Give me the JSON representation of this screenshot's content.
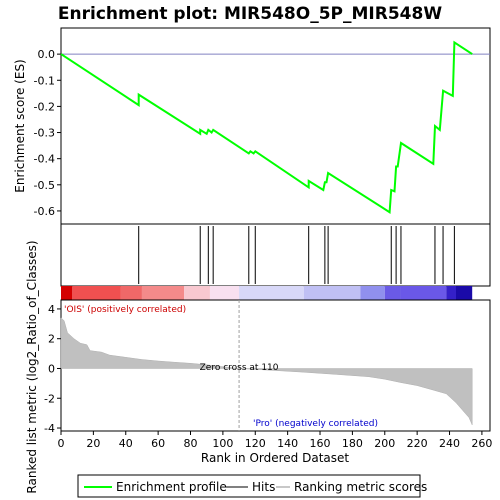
{
  "chart_data": {
    "type": "line",
    "title": "Enrichment plot: MIR548O_5P_MIR548W",
    "es_panel": {
      "ylabel": "Enrichment score (ES)",
      "ylim": [
        -0.65,
        0.1
      ],
      "yticks": [
        0.0,
        -0.1,
        -0.2,
        -0.3,
        -0.4,
        -0.5,
        -0.6
      ],
      "points": [
        {
          "rank": 0,
          "es": 0.0
        },
        {
          "rank": 48,
          "es": -0.195
        },
        {
          "rank": 48,
          "es": -0.155
        },
        {
          "rank": 86,
          "es": -0.305
        },
        {
          "rank": 86,
          "es": -0.29
        },
        {
          "rank": 90,
          "es": -0.305
        },
        {
          "rank": 91,
          "es": -0.29
        },
        {
          "rank": 93,
          "es": -0.3
        },
        {
          "rank": 94,
          "es": -0.29
        },
        {
          "rank": 116,
          "es": -0.38
        },
        {
          "rank": 117,
          "es": -0.372
        },
        {
          "rank": 119,
          "es": -0.38
        },
        {
          "rank": 120,
          "es": -0.372
        },
        {
          "rank": 153,
          "es": -0.51
        },
        {
          "rank": 153,
          "es": -0.485
        },
        {
          "rank": 162,
          "es": -0.52
        },
        {
          "rank": 163,
          "es": -0.49
        },
        {
          "rank": 164,
          "es": -0.49
        },
        {
          "rank": 165,
          "es": -0.455
        },
        {
          "rank": 203,
          "es": -0.605
        },
        {
          "rank": 204,
          "es": -0.52
        },
        {
          "rank": 206,
          "es": -0.525
        },
        {
          "rank": 207,
          "es": -0.43
        },
        {
          "rank": 208,
          "es": -0.43
        },
        {
          "rank": 210,
          "es": -0.34
        },
        {
          "rank": 230,
          "es": -0.42
        },
        {
          "rank": 231,
          "es": -0.275
        },
        {
          "rank": 234,
          "es": -0.29
        },
        {
          "rank": 236,
          "es": -0.14
        },
        {
          "rank": 242,
          "es": -0.16
        },
        {
          "rank": 243,
          "es": 0.045
        },
        {
          "rank": 254,
          "es": 0.0
        }
      ]
    },
    "hits": [
      48,
      86,
      91,
      94,
      116,
      120,
      153,
      163,
      165,
      204,
      207,
      210,
      231,
      236,
      243
    ],
    "metric_panel": {
      "xlabel": "Rank in Ordered Dataset",
      "ylabel": "Ranked list metric (log2_Ratio_of_Classes)",
      "ylim": [
        -4.2,
        4.6
      ],
      "yticks": [
        4,
        2,
        0,
        -2,
        -4
      ],
      "xlim": [
        0,
        265
      ],
      "xticks": [
        0,
        20,
        40,
        60,
        80,
        100,
        120,
        140,
        160,
        180,
        200,
        220,
        240,
        260
      ],
      "n_ranks": 254,
      "zero_cross_rank": 110,
      "zero_cross_label": "Zero cross at 110",
      "positive_label": "'OIS' (positively correlated)",
      "negative_label": "'Pro' (negatively correlated)",
      "metric_profile": [
        {
          "rank": 0,
          "value": 3.4
        },
        {
          "rank": 2,
          "value": 3.2
        },
        {
          "rank": 4,
          "value": 2.4
        },
        {
          "rank": 8,
          "value": 2.0
        },
        {
          "rank": 12,
          "value": 1.7
        },
        {
          "rank": 16,
          "value": 1.6
        },
        {
          "rank": 18,
          "value": 1.2
        },
        {
          "rank": 25,
          "value": 1.1
        },
        {
          "rank": 30,
          "value": 0.9
        },
        {
          "rank": 40,
          "value": 0.75
        },
        {
          "rank": 50,
          "value": 0.6
        },
        {
          "rank": 60,
          "value": 0.5
        },
        {
          "rank": 70,
          "value": 0.42
        },
        {
          "rank": 80,
          "value": 0.35
        },
        {
          "rank": 90,
          "value": 0.25
        },
        {
          "rank": 100,
          "value": 0.12
        },
        {
          "rank": 110,
          "value": 0.0
        },
        {
          "rank": 130,
          "value": -0.12
        },
        {
          "rank": 150,
          "value": -0.25
        },
        {
          "rank": 170,
          "value": -0.4
        },
        {
          "rank": 190,
          "value": -0.55
        },
        {
          "rank": 200,
          "value": -0.72
        },
        {
          "rank": 210,
          "value": -0.95
        },
        {
          "rank": 220,
          "value": -1.15
        },
        {
          "rank": 230,
          "value": -1.45
        },
        {
          "rank": 238,
          "value": -1.7
        },
        {
          "rank": 244,
          "value": -2.3
        },
        {
          "rank": 248,
          "value": -2.8
        },
        {
          "rank": 252,
          "value": -3.3
        },
        {
          "rank": 254,
          "value": -3.8
        }
      ]
    },
    "heat_band": [
      {
        "from": 0,
        "to": 7,
        "color": "#d40000"
      },
      {
        "from": 7,
        "to": 37,
        "color": "#f05050"
      },
      {
        "from": 37,
        "to": 50,
        "color": "#f06868"
      },
      {
        "from": 50,
        "to": 76,
        "color": "#f48a8a"
      },
      {
        "from": 76,
        "to": 92,
        "color": "#f8c8d0"
      },
      {
        "from": 92,
        "to": 110,
        "color": "#f8e0f0"
      },
      {
        "from": 110,
        "to": 150,
        "color": "#d8d8f8"
      },
      {
        "from": 150,
        "to": 185,
        "color": "#c0c0f4"
      },
      {
        "from": 185,
        "to": 200,
        "color": "#9090ee"
      },
      {
        "from": 200,
        "to": 210,
        "color": "#6a5ae6"
      },
      {
        "from": 210,
        "to": 238,
        "color": "#6a58e8"
      },
      {
        "from": 238,
        "to": 244,
        "color": "#3420c8"
      },
      {
        "from": 244,
        "to": 254,
        "color": "#1a0aa8"
      }
    ],
    "legend": [
      {
        "label": "Enrichment profile",
        "color": "#00ff00"
      },
      {
        "label": "Hits",
        "color": "#000000"
      },
      {
        "label": "Ranking metric scores",
        "color": "#c8c8c8"
      }
    ],
    "colors": {
      "es_line": "#00ff00",
      "zero_line": "#8080c0",
      "metric_fill": "#c0c0c0",
      "positive_label": "#cc0000",
      "negative_label": "#0000cc"
    }
  }
}
